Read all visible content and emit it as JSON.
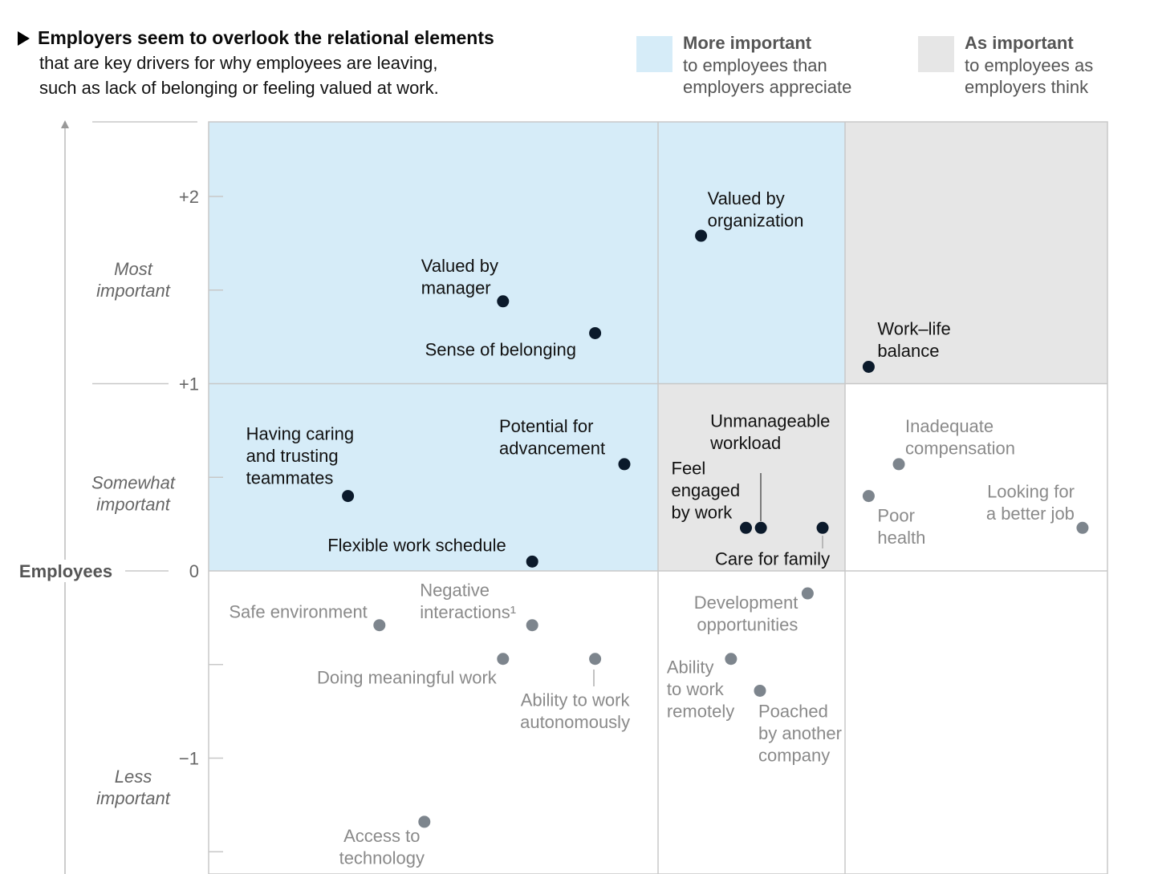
{
  "header": {
    "title": "Employers seem to overlook the relational elements",
    "subtitle_line1": "that are key drivers for why employees are leaving,",
    "subtitle_line2": "such as lack of belonging or feeling valued at work."
  },
  "legend": [
    {
      "title": "More important",
      "line1": "to employees than",
      "line2": "employers appreciate",
      "color": "#d6ecf8"
    },
    {
      "title": "As important",
      "line1": "to employees as",
      "line2": "employers think",
      "color": "#e6e6e6"
    }
  ],
  "colors": {
    "blue_region": "#d6ecf8",
    "grey_region": "#e6e6e6",
    "dark_point": "#0b1a2b",
    "grey_point": "#7d858d",
    "grid": "#c8c8c8"
  },
  "chart_data": {
    "type": "scatter",
    "ylabel": "Employees",
    "ylim": [
      -1.6,
      2.4
    ],
    "y_ticks": [
      {
        "value": 2,
        "label": "+2"
      },
      {
        "value": 1,
        "label": "+1"
      },
      {
        "value": 0,
        "label": "0"
      },
      {
        "value": -1,
        "label": "−1"
      }
    ],
    "y_bands": [
      {
        "y": 1.58,
        "lines": [
          "Most",
          "important"
        ]
      },
      {
        "y": 0.44,
        "lines": [
          "Somewhat",
          "important"
        ]
      },
      {
        "y": -1.13,
        "lines": [
          "Less",
          "important"
        ]
      }
    ],
    "x_columns": 3,
    "regions": [
      {
        "col": 0,
        "y_range": [
          0,
          2.4
        ],
        "fill": "blue"
      },
      {
        "col": 1,
        "y_range": [
          1,
          2.4
        ],
        "fill": "blue"
      },
      {
        "col": 1,
        "y_range": [
          0,
          1
        ],
        "fill": "grey"
      },
      {
        "col": 2,
        "y_range": [
          1,
          2.4
        ],
        "fill": "grey"
      }
    ],
    "points": [
      {
        "label": "Valued by organization",
        "lines": [
          "Valued by",
          "organization"
        ],
        "col": 1,
        "xf": 0.23,
        "y": 1.79,
        "style": "dark"
      },
      {
        "label": "Valued by manager",
        "lines": [
          "Valued by",
          "manager"
        ],
        "col": 0,
        "xf": 0.655,
        "y": 1.44,
        "style": "dark"
      },
      {
        "label": "Sense of belonging",
        "lines": [
          "Sense of belonging"
        ],
        "col": 0,
        "xf": 0.86,
        "y": 1.27,
        "style": "dark"
      },
      {
        "label": "Work–life balance",
        "lines": [
          "Work–life",
          "balance"
        ],
        "col": 2,
        "xf": 0.09,
        "y": 1.09,
        "style": "dark"
      },
      {
        "label": "Having caring and trusting teammates",
        "lines": [
          "Having caring",
          "and trusting",
          "teammates"
        ],
        "col": 0,
        "xf": 0.31,
        "y": 0.4,
        "style": "dark"
      },
      {
        "label": "Potential for advancement",
        "lines": [
          "Potential for",
          "advancement"
        ],
        "col": 0,
        "xf": 0.925,
        "y": 0.57,
        "style": "dark"
      },
      {
        "label": "Flexible work schedule",
        "lines": [
          "Flexible work schedule"
        ],
        "col": 0,
        "xf": 0.72,
        "y": 0.05,
        "style": "dark"
      },
      {
        "label": "Feel engaged by work",
        "lines": [
          "Feel",
          "engaged",
          "by work"
        ],
        "col": 1,
        "xf": 0.47,
        "y": 0.23,
        "style": "dark"
      },
      {
        "label": "Unmanageable workload",
        "lines": [
          "Unmanageable",
          "workload"
        ],
        "col": 1,
        "xf": 0.55,
        "y": 0.23,
        "style": "dark"
      },
      {
        "label": "Care for family",
        "lines": [
          "Care for family"
        ],
        "col": 1,
        "xf": 0.88,
        "y": 0.23,
        "style": "dark"
      },
      {
        "label": "Inadequate compensation",
        "lines": [
          "Inadequate",
          "compensation"
        ],
        "col": 2,
        "xf": 0.205,
        "y": 0.57,
        "style": "grey"
      },
      {
        "label": "Poor health",
        "lines": [
          "Poor",
          "health"
        ],
        "col": 2,
        "xf": 0.09,
        "y": 0.4,
        "style": "grey"
      },
      {
        "label": "Looking for a better job",
        "lines": [
          "Looking for",
          "a better job"
        ],
        "col": 2,
        "xf": 0.905,
        "y": 0.23,
        "style": "grey"
      },
      {
        "label": "Safe environment",
        "lines": [
          "Safe environment"
        ],
        "col": 0,
        "xf": 0.38,
        "y": -0.29,
        "style": "grey"
      },
      {
        "label": "Negative interactions¹",
        "lines": [
          "Negative",
          "interactions¹"
        ],
        "col": 0,
        "xf": 0.72,
        "y": -0.29,
        "style": "grey"
      },
      {
        "label": "Doing meaningful work",
        "lines": [
          "Doing meaningful work"
        ],
        "col": 0,
        "xf": 0.655,
        "y": -0.47,
        "style": "grey"
      },
      {
        "label": "Ability to work autonomously",
        "lines": [
          "Ability to work",
          "autonomously"
        ],
        "col": 0,
        "xf": 0.86,
        "y": -0.47,
        "style": "grey"
      },
      {
        "label": "Development opportunities",
        "lines": [
          "Development",
          "opportunities"
        ],
        "col": 1,
        "xf": 0.8,
        "y": -0.12,
        "style": "grey"
      },
      {
        "label": "Ability to work remotely",
        "lines": [
          "Ability",
          "to work",
          "remotely"
        ],
        "col": 1,
        "xf": 0.39,
        "y": -0.47,
        "style": "grey"
      },
      {
        "label": "Poached by another company",
        "lines": [
          "Poached",
          "by another",
          "company"
        ],
        "col": 1,
        "xf": 0.545,
        "y": -0.64,
        "style": "grey"
      },
      {
        "label": "Access to technology",
        "lines": [
          "Access to",
          "technology"
        ],
        "col": 0,
        "xf": 0.48,
        "y": -1.34,
        "style": "grey"
      }
    ]
  }
}
